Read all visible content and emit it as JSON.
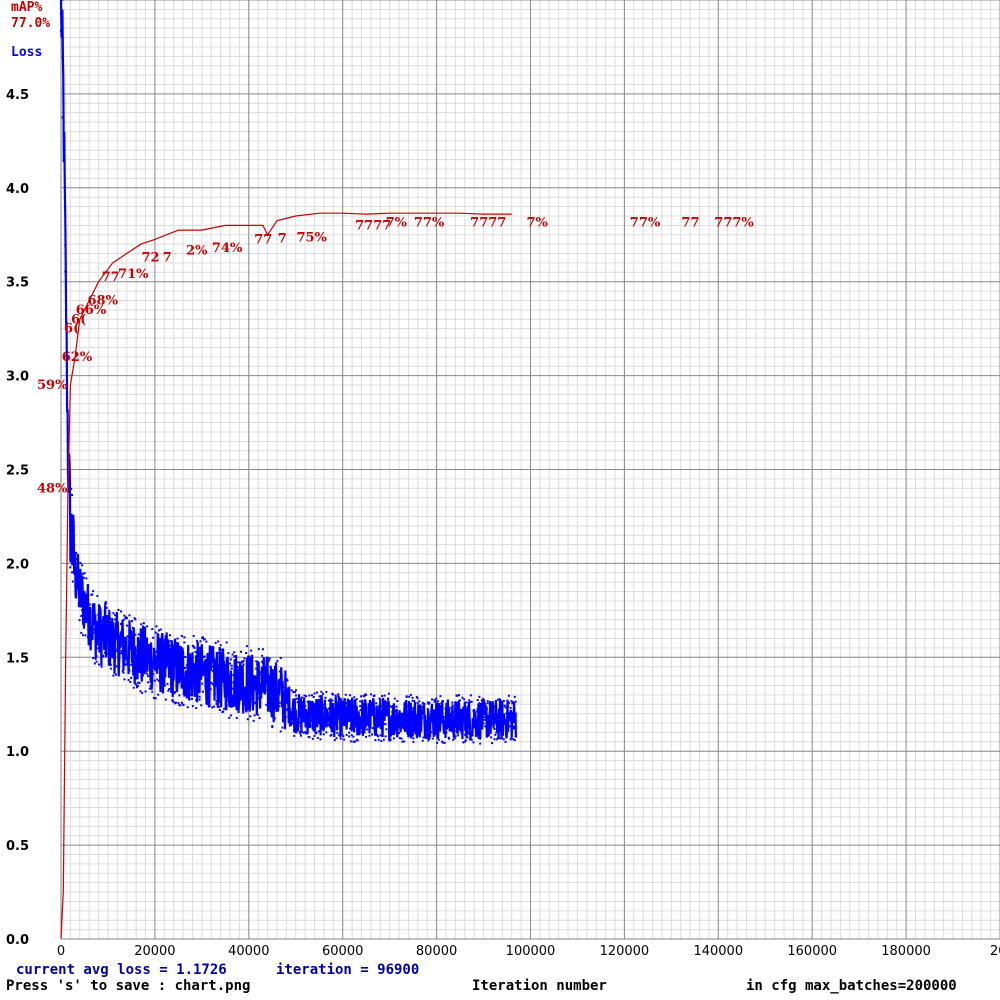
{
  "chart_data": {
    "type": "line",
    "title": "",
    "map_axis_label": "mAP%",
    "map_current_label": "77.0%",
    "loss_axis_label": "Loss",
    "xlabel": "Iteration number",
    "xlim": [
      0,
      200000
    ],
    "ylim": [
      0,
      5.0
    ],
    "x_ticks": [
      "0",
      "20000",
      "40000",
      "60000",
      "80000",
      "100000",
      "120000",
      "140000",
      "160000",
      "180000",
      "20"
    ],
    "y_ticks": [
      "0.0",
      "0.5",
      "1.0",
      "1.5",
      "2.0",
      "2.5",
      "3.0",
      "3.5",
      "4.0",
      "4.5"
    ],
    "grid": true,
    "colors": {
      "loss": "#0000ff",
      "map": "#c80000",
      "grid_major": "#8c8c8c",
      "grid_minor": "#dcdcdc"
    },
    "series": [
      {
        "name": "Loss",
        "x": [
          0,
          500,
          1000,
          1500,
          2000,
          3000,
          4000,
          6000,
          8000,
          12000,
          16000,
          20000,
          25000,
          30000,
          35000,
          40000,
          44000,
          47000,
          50000,
          55000,
          60000,
          70000,
          80000,
          90000,
          96900
        ],
        "values": [
          5.0,
          4.5,
          3.5,
          2.6,
          2.2,
          1.95,
          1.85,
          1.72,
          1.63,
          1.57,
          1.52,
          1.48,
          1.44,
          1.41,
          1.38,
          1.36,
          1.34,
          1.3,
          1.2,
          1.19,
          1.18,
          1.18,
          1.17,
          1.17,
          1.17
        ]
      },
      {
        "name": "mAP%",
        "x": [
          0,
          500,
          1000,
          1500,
          2000,
          3000,
          4000,
          5000,
          6000,
          8000,
          11000,
          14000,
          17000,
          20000,
          25000,
          30000,
          35000,
          40000,
          43000,
          44000,
          46000,
          50000,
          55000,
          60000,
          65000,
          70000,
          75000,
          80000,
          85000,
          90000,
          96000
        ],
        "values": [
          0,
          5,
          30,
          48,
          59,
          62,
          66,
          67,
          68,
          70,
          72,
          73,
          74,
          74.5,
          75.5,
          75.5,
          76,
          76,
          76,
          75,
          76.5,
          77,
          77.3,
          77.3,
          77.2,
          77.3,
          77.3,
          77.3,
          77.3,
          77.2,
          77.2
        ]
      }
    ],
    "map_labels": [
      {
        "x": 0,
        "y": 48,
        "text": "48%"
      },
      {
        "x": 0,
        "y": 59,
        "text": "59%"
      },
      {
        "x": 1000,
        "y": 62,
        "text": "62%"
      },
      {
        "x": 1500,
        "y": 65,
        "text": "6("
      },
      {
        "x": 3000,
        "y": 66,
        "text": "6("
      },
      {
        "x": 4000,
        "y": 67,
        "text": "66%"
      },
      {
        "x": 6500,
        "y": 68,
        "text": "68%"
      },
      {
        "x": 9500,
        "y": 70.5,
        "text": "77"
      },
      {
        "x": 13000,
        "y": 70.8,
        "text": "71%"
      },
      {
        "x": 18000,
        "y": 72.6,
        "text": "72"
      },
      {
        "x": 22500,
        "y": 72.6,
        "text": "7"
      },
      {
        "x": 27500,
        "y": 73.3,
        "text": "2%"
      },
      {
        "x": 33000,
        "y": 73.6,
        "text": "74%"
      },
      {
        "x": 42000,
        "y": 74.5,
        "text": "77"
      },
      {
        "x": 47000,
        "y": 74.6,
        "text": "7"
      },
      {
        "x": 51000,
        "y": 74.7,
        "text": "75%"
      },
      {
        "x": 63500,
        "y": 76.0,
        "text": "7777"
      },
      {
        "x": 70000,
        "y": 76.3,
        "text": "7%"
      },
      {
        "x": 76000,
        "y": 76.3,
        "text": "77%"
      },
      {
        "x": 88000,
        "y": 76.3,
        "text": "7777"
      },
      {
        "x": 100000,
        "y": 76.3,
        "text": "7%"
      },
      {
        "x": 122000,
        "y": 76.3,
        "text": "77%"
      },
      {
        "x": 133000,
        "y": 76.3,
        "text": "77"
      },
      {
        "x": 140000,
        "y": 76.3,
        "text": "777%"
      }
    ]
  },
  "footer": {
    "current_avg_loss": "current avg loss = 1.1726",
    "iteration": "iteration = 96900",
    "save_hint": "Press 's' to save : chart.png",
    "xlabel": "Iteration number",
    "max_batches": "in cfg max_batches=200000"
  }
}
